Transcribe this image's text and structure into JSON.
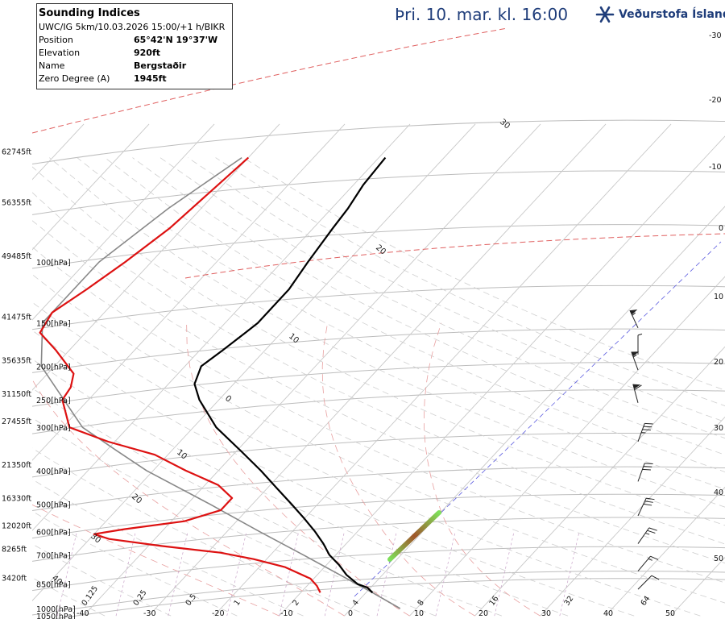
{
  "header": {
    "title": "Þri. 10. mar. kl. 16:00",
    "logo_text": "Veðurstofa Íslands",
    "logo_icon": "snowflake-icon"
  },
  "info_box": {
    "heading": "Sounding Indices",
    "model_line": "UWC/IG 5km/10.03.2026 15:00/+1 h/BIKR",
    "rows": [
      {
        "label": "Position",
        "value": "65°42'N 19°37'W"
      },
      {
        "label": "Elevation",
        "value": "920ft"
      },
      {
        "label": "Name",
        "value": "Bergstaðir"
      },
      {
        "label": "Zero Degree (A)",
        "value": "1945ft"
      }
    ]
  },
  "chart_data": {
    "type": "line",
    "diagram": "skew-T log-p",
    "colors": {
      "temperature": "#000000",
      "dewpoint": "#dd1111",
      "parcel": "#888888",
      "isotherm_zero": "#e06060",
      "gradient_low": "#7ee05a",
      "gradient_high": "#a0562a"
    },
    "pressure_levels": [
      {
        "p": 1050,
        "label": "1050[hPa]"
      },
      {
        "p": 1000,
        "label": "1000[hPa]"
      },
      {
        "p": 850,
        "label": "850[hPa]",
        "height": "3420ft"
      },
      {
        "p": 700,
        "label": "700[hPa]",
        "height": "8265ft"
      },
      {
        "p": 600,
        "label": "600[hPa]",
        "height": "12020ft"
      },
      {
        "p": 500,
        "label": "500[hPa]",
        "height": "16330ft"
      },
      {
        "p": 400,
        "label": "400[hPa]",
        "height": "21350ft"
      },
      {
        "p": 300,
        "label": "300[hPa]",
        "height": "27455ft"
      },
      {
        "p": 250,
        "label": "250[hPa]",
        "height": "31150ft"
      },
      {
        "p": 200,
        "label": "200[hPa]",
        "height": "35635ft"
      },
      {
        "p": 150,
        "label": "150[hPa]",
        "height": "41475ft"
      },
      {
        "p": 100,
        "label": "100[hPa]",
        "height": "49485ft"
      },
      {
        "p": 70,
        "label": "",
        "height": "56355ft"
      },
      {
        "p": 50,
        "label": "",
        "height": "62745ft"
      }
    ],
    "bottom_ticks": [
      "-40",
      "-30",
      "-20",
      "-10",
      "0",
      "10",
      "20",
      "30",
      "40",
      "50"
    ],
    "bottom_mixing_ticks": [
      "0.125",
      "0.25",
      "0.5",
      "1",
      "2",
      "4",
      "8",
      "16",
      "32",
      "64"
    ],
    "right_ticks": [
      "-30",
      "-20",
      "-10",
      "0",
      "10",
      "20",
      "30",
      "40",
      "50"
    ],
    "isotherm_labels": [
      "30",
      "20",
      "10",
      "0",
      "10",
      "20",
      "30",
      "40"
    ],
    "temperature": [
      {
        "p": 900,
        "t": 1.0
      },
      {
        "p": 870,
        "t": -0.5
      },
      {
        "p": 850,
        "t": -2.5
      },
      {
        "p": 800,
        "t": -5.5
      },
      {
        "p": 750,
        "t": -8.0
      },
      {
        "p": 700,
        "t": -11.0
      },
      {
        "p": 650,
        "t": -13.5
      },
      {
        "p": 600,
        "t": -16.5
      },
      {
        "p": 550,
        "t": -20.0
      },
      {
        "p": 500,
        "t": -24.0
      },
      {
        "p": 450,
        "t": -28.5
      },
      {
        "p": 400,
        "t": -33.5
      },
      {
        "p": 350,
        "t": -39.5
      },
      {
        "p": 300,
        "t": -46.5
      },
      {
        "p": 250,
        "t": -53.0
      },
      {
        "p": 225,
        "t": -56.0
      },
      {
        "p": 200,
        "t": -57.5
      },
      {
        "p": 180,
        "t": -56.5
      },
      {
        "p": 160,
        "t": -55.5
      },
      {
        "p": 150,
        "t": -55.0
      },
      {
        "p": 120,
        "t": -55.0
      },
      {
        "p": 100,
        "t": -56.0
      },
      {
        "p": 80,
        "t": -57.0
      },
      {
        "p": 70,
        "t": -57.5
      },
      {
        "p": 60,
        "t": -58.5
      },
      {
        "p": 50,
        "t": -59.0
      }
    ],
    "dewpoint": [
      {
        "p": 900,
        "t": -7.0
      },
      {
        "p": 860,
        "t": -8.5
      },
      {
        "p": 820,
        "t": -10.5
      },
      {
        "p": 760,
        "t": -16.0
      },
      {
        "p": 720,
        "t": -22.0
      },
      {
        "p": 690,
        "t": -28.0
      },
      {
        "p": 660,
        "t": -38.0
      },
      {
        "p": 630,
        "t": -47.0
      },
      {
        "p": 610,
        "t": -50.0
      },
      {
        "p": 590,
        "t": -46.0
      },
      {
        "p": 560,
        "t": -38.0
      },
      {
        "p": 520,
        "t": -34.0
      },
      {
        "p": 480,
        "t": -34.0
      },
      {
        "p": 440,
        "t": -38.0
      },
      {
        "p": 400,
        "t": -45.0
      },
      {
        "p": 360,
        "t": -52.0
      },
      {
        "p": 330,
        "t": -61.0
      },
      {
        "p": 300,
        "t": -69.0
      },
      {
        "p": 250,
        "t": -74.0
      },
      {
        "p": 230,
        "t": -74.5
      },
      {
        "p": 210,
        "t": -76.0
      },
      {
        "p": 180,
        "t": -82.0
      },
      {
        "p": 160,
        "t": -87.0
      },
      {
        "p": 140,
        "t": -88.0
      },
      {
        "p": 120,
        "t": -86.0
      },
      {
        "p": 100,
        "t": -84.0
      },
      {
        "p": 80,
        "t": -82.0
      },
      {
        "p": 50,
        "t": -80.0
      }
    ],
    "parcel": [
      {
        "p": 1000,
        "t": 7.5
      },
      {
        "p": 900,
        "t": 1.0
      },
      {
        "p": 800,
        "t": -6.5
      },
      {
        "p": 700,
        "t": -15.0
      },
      {
        "p": 600,
        "t": -25.0
      },
      {
        "p": 500,
        "t": -36.5
      },
      {
        "p": 400,
        "t": -51.0
      },
      {
        "p": 350,
        "t": -58.5
      },
      {
        "p": 300,
        "t": -67.0
      },
      {
        "p": 200,
        "t": -82.0
      },
      {
        "p": 150,
        "t": -88.0
      },
      {
        "p": 100,
        "t": -88.0
      },
      {
        "p": 70,
        "t": -85.0
      },
      {
        "p": 50,
        "t": -81.0
      }
    ],
    "wind_barbs": [
      {
        "p": 880,
        "dir": 45,
        "speed_kt": 10
      },
      {
        "p": 780,
        "dir": 40,
        "speed_kt": 15
      },
      {
        "p": 650,
        "dir": 35,
        "speed_kt": 25
      },
      {
        "p": 540,
        "dir": 25,
        "speed_kt": 30
      },
      {
        "p": 430,
        "dir": 20,
        "speed_kt": 30
      },
      {
        "p": 330,
        "dir": 20,
        "speed_kt": 35
      },
      {
        "p": 255,
        "dir": 345,
        "speed_kt": 60
      },
      {
        "p": 205,
        "dir": 340,
        "speed_kt": 55
      },
      {
        "p": 185,
        "dir": 0,
        "speed_kt": 5
      },
      {
        "p": 155,
        "dir": 335,
        "speed_kt": 55
      }
    ]
  }
}
